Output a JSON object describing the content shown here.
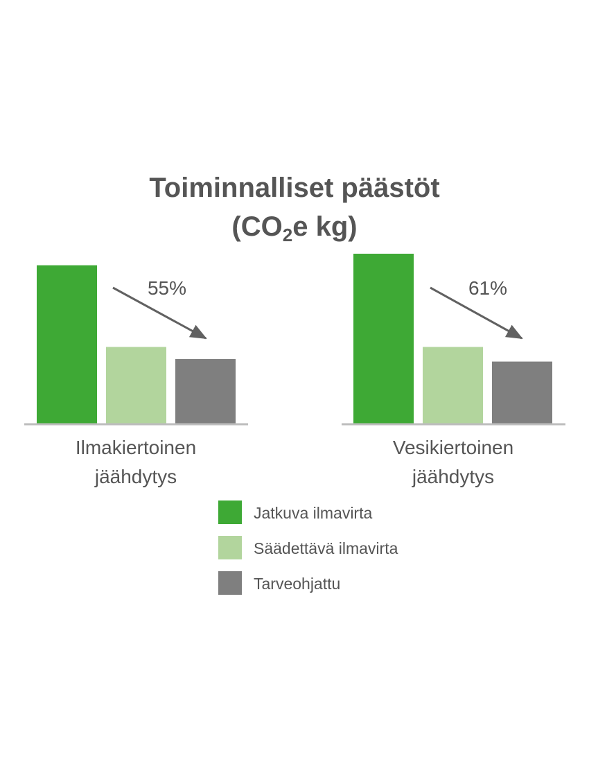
{
  "chart_data": {
    "type": "bar",
    "title": "Toiminnalliset päästöt",
    "subtitle": {
      "prefix": "(CO",
      "subscript": "2",
      "suffix": "e kg)"
    },
    "categories": [
      [
        "Ilmakiertoinen",
        "jäähdytys"
      ],
      [
        "Vesikiertoinen",
        "jäähdytys"
      ]
    ],
    "series": [
      {
        "name": "Jatkuva ilmavirta",
        "color": "#3ea935",
        "values": [
          93.2,
          100
        ]
      },
      {
        "name": "Säädettävä ilmavirta",
        "color": "#b2d59d",
        "values": [
          45.1,
          45.1
        ]
      },
      {
        "name": "Tarveohjattu",
        "color": "#7f7f7f",
        "values": [
          38.0,
          36.5
        ]
      }
    ],
    "annotations": [
      "55%",
      "61%"
    ],
    "ylim": [
      0,
      100
    ],
    "axis_color": "#bdbdbd",
    "arrow_color": "#616161",
    "grid": false,
    "legend_position": "bottom-center"
  }
}
